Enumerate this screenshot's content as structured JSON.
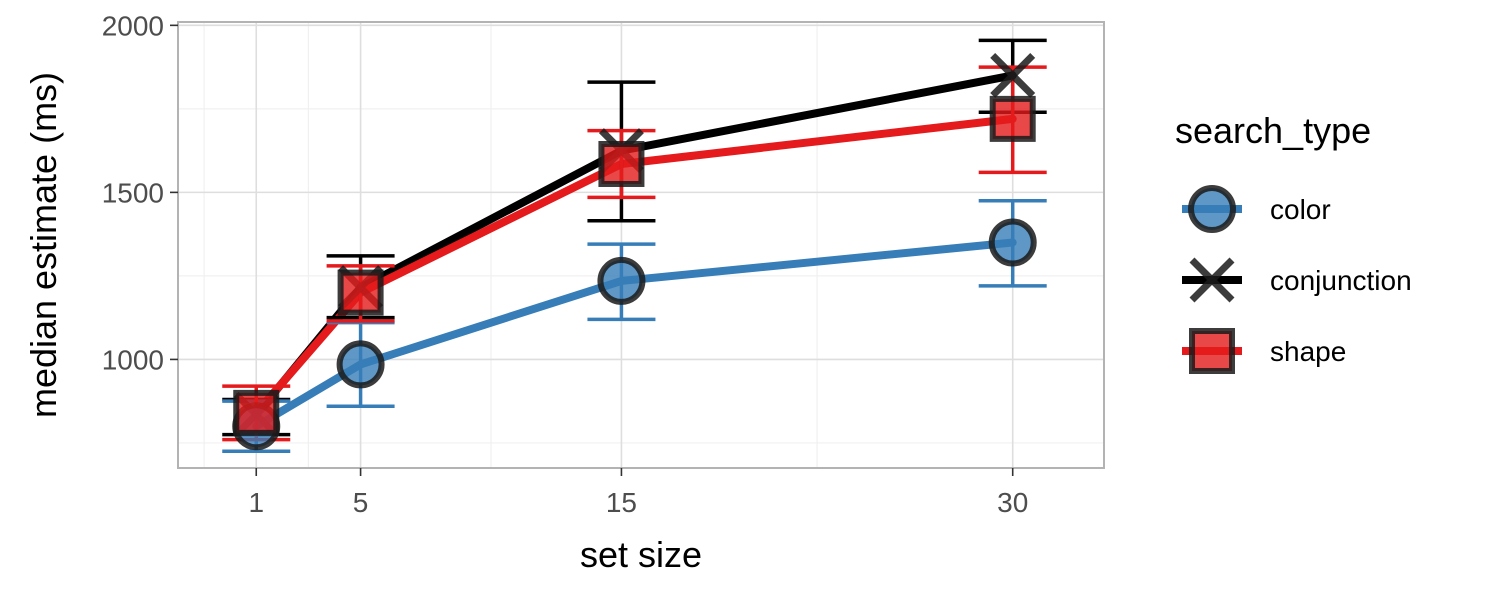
{
  "chart_data": {
    "type": "line",
    "xlabel": "set size",
    "ylabel": "median estimate (ms)",
    "x": [
      1,
      5,
      15,
      30
    ],
    "xticks": [
      "1",
      "5",
      "15",
      "30"
    ],
    "yticks": [
      1000,
      1500,
      2000
    ],
    "ytick_labels": [
      "1000",
      "1500",
      "2000"
    ],
    "xlim": [
      -2,
      33.5
    ],
    "ylim": [
      675,
      2010
    ],
    "grid": true,
    "error_bars": true,
    "legend": {
      "title": "search_type",
      "position": "right"
    },
    "series": [
      {
        "name": "color",
        "marker": "circle",
        "color": "#377EB8",
        "values": [
          800,
          985,
          1235,
          1350
        ],
        "lower": [
          725,
          860,
          1120,
          1220
        ],
        "upper": [
          875,
          1110,
          1345,
          1475
        ]
      },
      {
        "name": "conjunction",
        "marker": "x",
        "color": "#000000",
        "values": [
          835,
          1215,
          1625,
          1850
        ],
        "lower": [
          775,
          1125,
          1415,
          1740
        ],
        "upper": [
          880,
          1310,
          1830,
          1955
        ]
      },
      {
        "name": "shape",
        "marker": "square",
        "color": "#E41A1C",
        "values": [
          840,
          1200,
          1585,
          1720
        ],
        "lower": [
          760,
          1115,
          1485,
          1560
        ],
        "upper": [
          920,
          1280,
          1685,
          1875
        ]
      }
    ]
  }
}
